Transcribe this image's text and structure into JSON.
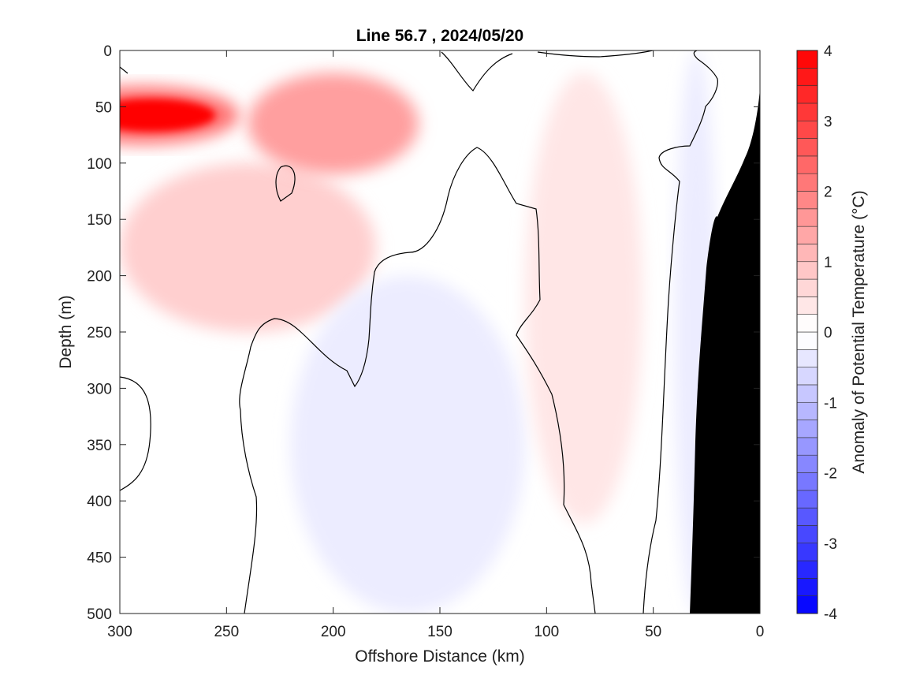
{
  "chart_data": {
    "type": "heatmap",
    "title": "Line 56.7 , 2024/05/20",
    "xlabel": "Offshore Distance (km)",
    "ylabel": "Depth (m)",
    "xlim": [
      300,
      0
    ],
    "ylim": [
      0,
      500
    ],
    "x_reversed": true,
    "y_reversed": true,
    "x_ticks": [
      300,
      250,
      200,
      150,
      100,
      50,
      0
    ],
    "y_ticks": [
      0,
      50,
      100,
      150,
      200,
      250,
      300,
      350,
      400,
      450,
      500
    ],
    "grid": false,
    "colorbar": {
      "label": "Anomaly of Potential Temperature (°C)",
      "range": [
        -4,
        4
      ],
      "levels_step": 0.25,
      "ticks": [
        4,
        3,
        2,
        1,
        0,
        -1,
        -2,
        -3,
        -4
      ],
      "colormap": "blue-white-red",
      "low_color": "#0000ff",
      "mid_color": "#ffffff",
      "high_color": "#ff0000"
    },
    "land_color": "#000000",
    "zero_contour_color": "#000000",
    "regions": [
      {
        "feature": "warm core maximum",
        "x_range": [
          300,
          240
        ],
        "depth_range": [
          40,
          75
        ],
        "anomaly_max": 4.0
      },
      {
        "feature": "warm tongue",
        "x_range": [
          240,
          160
        ],
        "depth_range": [
          20,
          110
        ],
        "anomaly": 1.5
      },
      {
        "feature": "warm column",
        "x_range": [
          300,
          180
        ],
        "depth_range": [
          100,
          250
        ],
        "anomaly": 0.75
      },
      {
        "feature": "nearshore warm band",
        "x_range": [
          110,
          55
        ],
        "depth_range": [
          20,
          420
        ],
        "anomaly": 0.4
      },
      {
        "feature": "offshore cool patch",
        "x_range": [
          220,
          110
        ],
        "depth_range": [
          200,
          500
        ],
        "anomaly": -0.3
      },
      {
        "feature": "coastal cool band",
        "x_range": [
          40,
          20
        ],
        "depth_range": [
          0,
          500
        ],
        "anomaly": -0.3
      }
    ]
  }
}
